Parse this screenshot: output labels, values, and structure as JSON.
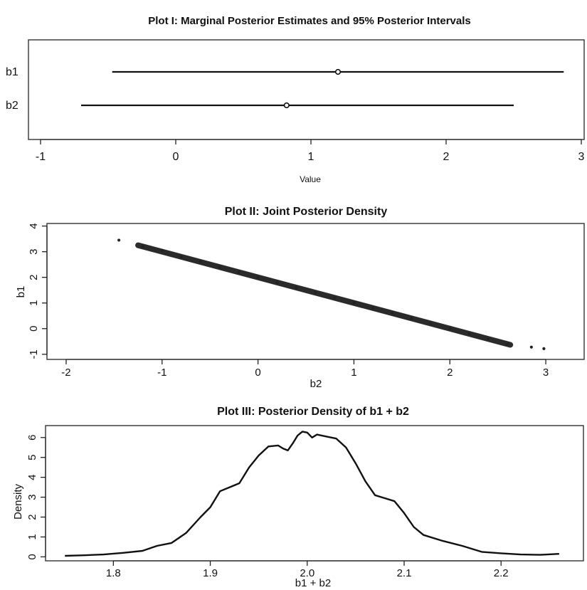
{
  "chart_data": [
    {
      "type": "interval",
      "title": "Plot I: Marginal Posterior Estimates and 95% Posterior Intervals",
      "xlabel": "Value",
      "ylabel": "",
      "xlim": [
        -1,
        3
      ],
      "xticks": [
        -1,
        0,
        1,
        2,
        3
      ],
      "grid": false,
      "series": [
        {
          "name": "b1",
          "estimate": 1.2,
          "lower": -0.47,
          "upper": 2.87
        },
        {
          "name": "b2",
          "estimate": 0.82,
          "lower": -0.7,
          "upper": 2.5
        }
      ]
    },
    {
      "type": "scatter",
      "title": "Plot II: Joint Posterior Density",
      "xlabel": "b2",
      "ylabel": "b1",
      "xlim": [
        -2.2,
        3.4
      ],
      "ylim": [
        -1.2,
        4.1
      ],
      "xticks": [
        -2,
        -1,
        0,
        1,
        2,
        3
      ],
      "yticks": [
        -1,
        0,
        1,
        2,
        3,
        4
      ],
      "grid": false,
      "relation": {
        "slope": -1,
        "intercept": 2.0
      },
      "x_range": [
        -1.45,
        2.98
      ],
      "points": [
        [
          -1.45,
          3.45
        ],
        [
          -1.2,
          3.2
        ],
        [
          -1.0,
          3.05
        ],
        [
          -0.8,
          2.8
        ],
        [
          -0.6,
          2.62
        ],
        [
          -0.4,
          2.4
        ],
        [
          -0.2,
          2.2
        ],
        [
          0.0,
          2.0
        ],
        [
          0.2,
          1.8
        ],
        [
          0.4,
          1.6
        ],
        [
          0.6,
          1.4
        ],
        [
          0.8,
          1.2
        ],
        [
          1.0,
          1.0
        ],
        [
          1.2,
          0.8
        ],
        [
          1.4,
          0.6
        ],
        [
          1.6,
          0.4
        ],
        [
          1.8,
          0.2
        ],
        [
          2.0,
          0.0
        ],
        [
          2.2,
          -0.2
        ],
        [
          2.4,
          -0.4
        ],
        [
          2.6,
          -0.6
        ],
        [
          2.85,
          -0.72
        ],
        [
          2.98,
          -0.78
        ]
      ]
    },
    {
      "type": "line",
      "title": "Plot III: Posterior Density of b1 + b2",
      "xlabel": "b1 + b2",
      "ylabel": "Density",
      "xlim": [
        1.73,
        2.285
      ],
      "ylim": [
        -0.2,
        6.6
      ],
      "xticks": [
        1.8,
        1.9,
        2.0,
        2.1,
        2.2
      ],
      "yticks": [
        0,
        1,
        2,
        3,
        4,
        5,
        6
      ],
      "grid": false,
      "x": [
        1.75,
        1.77,
        1.79,
        1.81,
        1.83,
        1.845,
        1.86,
        1.875,
        1.89,
        1.9,
        1.91,
        1.92,
        1.93,
        1.94,
        1.95,
        1.96,
        1.97,
        1.975,
        1.98,
        1.985,
        1.99,
        1.995,
        2.0,
        2.005,
        2.01,
        2.02,
        2.03,
        2.04,
        2.05,
        2.06,
        2.07,
        2.08,
        2.09,
        2.1,
        2.11,
        2.12,
        2.14,
        2.16,
        2.18,
        2.2,
        2.22,
        2.24,
        2.26
      ],
      "y": [
        0.05,
        0.08,
        0.12,
        0.2,
        0.3,
        0.55,
        0.7,
        1.2,
        2.0,
        2.5,
        3.3,
        3.5,
        3.7,
        4.5,
        5.1,
        5.55,
        5.6,
        5.45,
        5.35,
        5.7,
        6.1,
        6.3,
        6.25,
        6.0,
        6.15,
        6.05,
        5.95,
        5.5,
        4.7,
        3.8,
        3.1,
        2.95,
        2.8,
        2.2,
        1.5,
        1.1,
        0.8,
        0.55,
        0.25,
        0.18,
        0.12,
        0.1,
        0.15
      ]
    }
  ]
}
